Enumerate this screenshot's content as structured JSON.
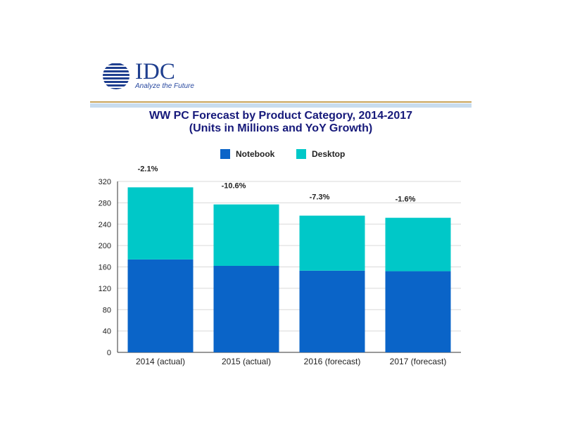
{
  "logo": {
    "name": "IDC",
    "tagline": "Analyze the Future"
  },
  "chart_data": {
    "type": "bar",
    "stacked": true,
    "title": "WW PC Forecast by Product Category, 2014-2017",
    "subtitle": "(Units in Millions and YoY Growth)",
    "categories": [
      "2014 (actual)",
      "2015 (actual)",
      "2016 (forecast)",
      "2017 (forecast)"
    ],
    "series": [
      {
        "name": "Notebook",
        "color": "#0a64c8",
        "values": [
          174,
          162,
          153,
          152
        ]
      },
      {
        "name": "Desktop",
        "color": "#00c8c8",
        "values": [
          135,
          115,
          103,
          100
        ]
      }
    ],
    "annotations": [
      "-2.1%",
      "-10.6%",
      "-7.3%",
      "-1.6%"
    ],
    "yticks": [
      0,
      40,
      80,
      120,
      160,
      200,
      240,
      280,
      320
    ],
    "ylim": [
      0,
      320
    ],
    "grid": true,
    "legend_position": "top"
  }
}
